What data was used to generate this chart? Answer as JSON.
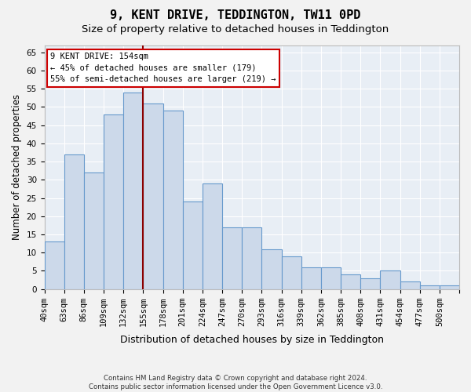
{
  "title": "9, KENT DRIVE, TEDDINGTON, TW11 0PD",
  "subtitle": "Size of property relative to detached houses in Teddington",
  "xlabel": "Distribution of detached houses by size in Teddington",
  "ylabel": "Number of detached properties",
  "bar_color": "#ccd9ea",
  "bar_edge_color": "#6699cc",
  "background_color": "#e8eef5",
  "grid_color": "#ffffff",
  "vline_color": "#8b0000",
  "annotation_text": "9 KENT DRIVE: 154sqm\n← 45% of detached houses are smaller (179)\n55% of semi-detached houses are larger (219) →",
  "annotation_box_color": "#ffffff",
  "annotation_box_edge_color": "#cc0000",
  "categories": [
    "40sqm",
    "63sqm",
    "86sqm",
    "109sqm",
    "132sqm",
    "155sqm",
    "178sqm",
    "201sqm",
    "224sqm",
    "247sqm",
    "270sqm",
    "293sqm",
    "316sqm",
    "339sqm",
    "362sqm",
    "385sqm",
    "408sqm",
    "431sqm",
    "454sqm",
    "477sqm",
    "500sqm"
  ],
  "bin_edges": [
    40,
    63,
    86,
    109,
    132,
    155,
    178,
    201,
    224,
    247,
    270,
    293,
    316,
    339,
    362,
    385,
    408,
    431,
    454,
    477,
    500,
    523
  ],
  "bar_heights": [
    13,
    37,
    32,
    48,
    54,
    51,
    49,
    24,
    29,
    17,
    17,
    11,
    9,
    6,
    6,
    4,
    3,
    5,
    2,
    1,
    1
  ],
  "ylim": [
    0,
    67
  ],
  "yticks": [
    0,
    5,
    10,
    15,
    20,
    25,
    30,
    35,
    40,
    45,
    50,
    55,
    60,
    65
  ],
  "footnote": "Contains HM Land Registry data © Crown copyright and database right 2024.\nContains public sector information licensed under the Open Government Licence v3.0.",
  "title_fontsize": 11,
  "subtitle_fontsize": 9.5,
  "tick_fontsize": 7.5,
  "ylabel_fontsize": 8.5,
  "xlabel_fontsize": 9
}
